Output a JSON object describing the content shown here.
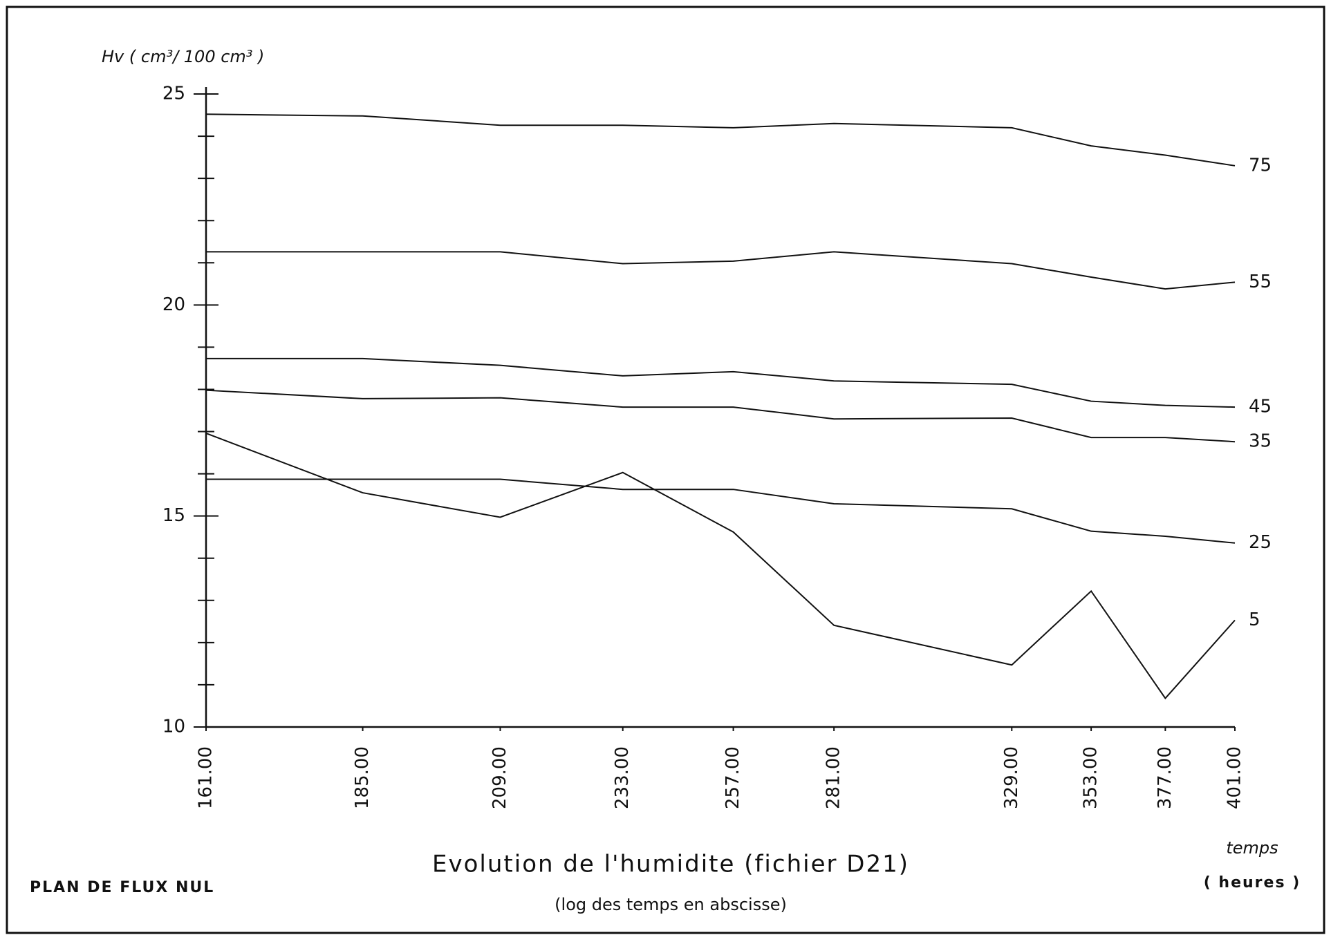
{
  "chart_data": {
    "type": "line",
    "title": "Evolution de l'humidite (fichier D21)",
    "subtitle": "(log des temps en abscisse)",
    "y_label": "Hv ( cm³/ 100 cm³ )",
    "x_label": "temps",
    "x_unit": "( heures )",
    "annotation": "PLAN DE FLUX NUL",
    "x_scale": "log",
    "x": [
      161,
      185,
      209,
      233,
      257,
      281,
      329,
      353,
      377,
      401
    ],
    "xlim": [
      161,
      401
    ],
    "xticks": [
      {
        "value": 161,
        "label": "161.00"
      },
      {
        "value": 185,
        "label": "185.00"
      },
      {
        "value": 209,
        "label": "209.00"
      },
      {
        "value": 233,
        "label": "233.00"
      },
      {
        "value": 257,
        "label": "257.00"
      },
      {
        "value": 281,
        "label": "281.00"
      },
      {
        "value": 329,
        "label": "329.00"
      },
      {
        "value": 353,
        "label": "353.00"
      },
      {
        "value": 377,
        "label": "377.00"
      },
      {
        "value": 401,
        "label": "401.00"
      }
    ],
    "ylim": [
      10,
      25
    ],
    "yticks": [
      10,
      15,
      20,
      25
    ],
    "minor_yticks": [
      11,
      12,
      13,
      14,
      16,
      17,
      18,
      19,
      21,
      22,
      23,
      24
    ],
    "color": "#111111",
    "series": [
      {
        "name": "75",
        "values": [
          24.52,
          24.48,
          24.26,
          24.26,
          24.2,
          24.3,
          24.2,
          23.77,
          23.55,
          23.3
        ]
      },
      {
        "name": "55",
        "values": [
          21.26,
          21.26,
          21.26,
          20.98,
          21.04,
          21.26,
          20.98,
          20.66,
          20.38,
          20.54
        ]
      },
      {
        "name": "45",
        "values": [
          18.73,
          18.73,
          18.57,
          18.32,
          18.42,
          18.2,
          18.12,
          17.72,
          17.62,
          17.58
        ]
      },
      {
        "name": "35",
        "values": [
          17.98,
          17.78,
          17.8,
          17.58,
          17.58,
          17.3,
          17.32,
          16.86,
          16.86,
          16.76
        ]
      },
      {
        "name": "25",
        "values": [
          15.87,
          15.87,
          15.87,
          15.63,
          15.63,
          15.29,
          15.17,
          14.64,
          14.52,
          14.36
        ]
      },
      {
        "name": "5",
        "values": [
          16.96,
          15.55,
          14.97,
          16.03,
          14.62,
          12.41,
          11.47,
          13.22,
          10.68,
          12.53
        ]
      }
    ]
  }
}
